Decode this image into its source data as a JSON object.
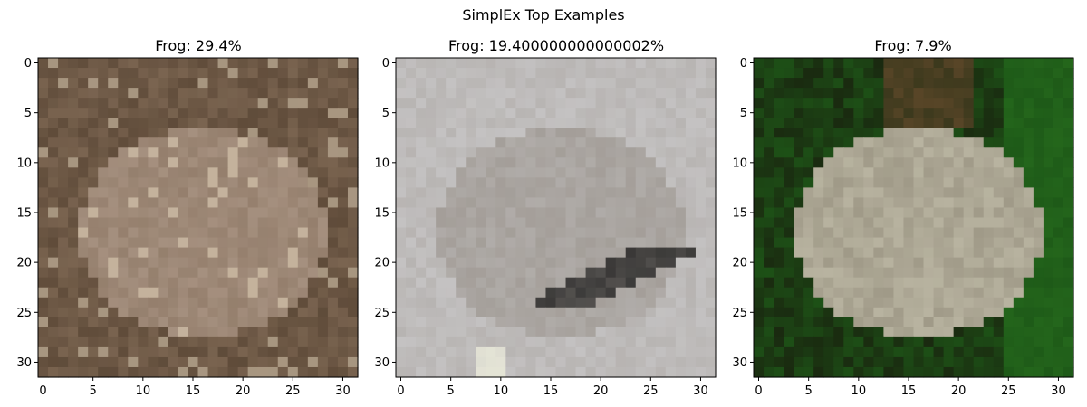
{
  "figure": {
    "suptitle": "SimplEx Top Examples"
  },
  "panels": [
    {
      "title": "Frog: 29.4%",
      "image": "pixelated-frog-on-brown-ground",
      "palette": {
        "base": "#7a6450",
        "light": "#b5a090",
        "dark": "#4a3828",
        "accent": "#d8c8b0"
      }
    },
    {
      "title": "Frog: 19.400000000000002%",
      "image": "pixelated-frog-on-gray-background",
      "palette": {
        "base": "#a09a94",
        "light": "#c4c2c2",
        "dark": "#202020",
        "accent": "#e8e8d8"
      }
    },
    {
      "title": "Frog: 7.9%",
      "image": "pixelated-frog-on-green-leaves",
      "palette": {
        "base": "#a09a88",
        "light": "#c8c4b0",
        "dark": "#1a2a10",
        "accent": "#1e5a18"
      }
    }
  ],
  "axes": {
    "ticks": [
      "0",
      "5",
      "10",
      "15",
      "20",
      "25",
      "30"
    ],
    "tick_values": [
      0,
      5,
      10,
      15,
      20,
      25,
      30
    ],
    "range": [
      -0.5,
      31.5
    ]
  }
}
